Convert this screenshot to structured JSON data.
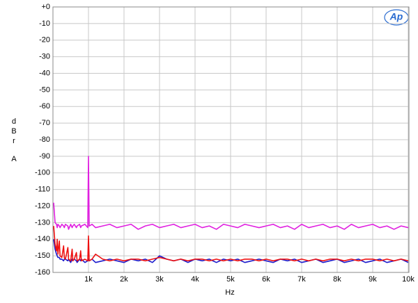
{
  "chart_data": {
    "type": "line",
    "xlabel": "Hz",
    "ylabel": [
      "d",
      "B",
      "r",
      "A"
    ],
    "logo": "Ap",
    "xlim": [
      0,
      10020
    ],
    "ylim": [
      -160,
      0
    ],
    "xticks": [
      {
        "value": 1000,
        "label": "1k"
      },
      {
        "value": 2000,
        "label": "2k"
      },
      {
        "value": 3000,
        "label": "3k"
      },
      {
        "value": 4000,
        "label": "4k"
      },
      {
        "value": 5000,
        "label": "5k"
      },
      {
        "value": 6000,
        "label": "6k"
      },
      {
        "value": 7000,
        "label": "7k"
      },
      {
        "value": 8000,
        "label": "8k"
      },
      {
        "value": 9000,
        "label": "9k"
      },
      {
        "value": 10000,
        "label": "10k"
      }
    ],
    "yticks": [
      {
        "value": 0,
        "label": "+0"
      },
      -10,
      -20,
      -30,
      -40,
      -50,
      -60,
      -70,
      -80,
      -90,
      -100,
      -110,
      -120,
      -130,
      -140,
      -150,
      -160
    ],
    "grid": true,
    "x": [
      20,
      60,
      100,
      120,
      140,
      180,
      200,
      250,
      300,
      320,
      350,
      420,
      440,
      500,
      540,
      560,
      600,
      660,
      680,
      750,
      780,
      800,
      900,
      980,
      1000,
      1020,
      1100,
      1200,
      1400,
      1600,
      1800,
      2000,
      2200,
      2400,
      2600,
      2800,
      3000,
      3200,
      3400,
      3600,
      3800,
      4000,
      4200,
      4400,
      4600,
      4800,
      5000,
      5200,
      5400,
      5600,
      5800,
      6000,
      6200,
      6400,
      6600,
      6800,
      7000,
      7200,
      7400,
      7600,
      7800,
      8000,
      8200,
      8400,
      8600,
      8800,
      9000,
      9200,
      9400,
      9600,
      9800,
      10000
    ],
    "series": [
      {
        "color": "#e020e0",
        "values": [
          -118,
          -130,
          -131,
          -133,
          -131,
          -132,
          -133,
          -131,
          -132,
          -133,
          -131,
          -132,
          -134,
          -131,
          -133,
          -132,
          -131,
          -133,
          -132,
          -131,
          -133,
          -132,
          -131,
          -133,
          -90,
          -132,
          -131,
          -133,
          -132,
          -131,
          -133,
          -132,
          -131,
          -134,
          -132,
          -131,
          -133,
          -132,
          -131,
          -133,
          -132,
          -131,
          -133,
          -132,
          -134,
          -131,
          -132,
          -133,
          -131,
          -132,
          -133,
          -132,
          -131,
          -133,
          -132,
          -134,
          -131,
          -133,
          -132,
          -131,
          -133,
          -132,
          -134,
          -131,
          -133,
          -132,
          -131,
          -133,
          -132,
          -134,
          -132,
          -133
        ]
      },
      {
        "color": "#1a1acc",
        "values": [
          -140,
          -146,
          -149,
          -150,
          -151,
          -151,
          -152,
          -152,
          -153,
          -152,
          -152,
          -153,
          -152,
          -154,
          -152,
          -153,
          -152,
          -153,
          -154,
          -152,
          -153,
          -152,
          -154,
          -153,
          -152,
          -153,
          -152,
          -154,
          -153,
          -152,
          -153,
          -154,
          -152,
          -153,
          -152,
          -154,
          -150,
          -152,
          -153,
          -152,
          -154,
          -152,
          -153,
          -152,
          -154,
          -152,
          -153,
          -152,
          -154,
          -153,
          -152,
          -153,
          -154,
          -152,
          -153,
          -152,
          -154,
          -153,
          -152,
          -154,
          -153,
          -152,
          -154,
          -153,
          -152,
          -154,
          -153,
          -152,
          -154,
          -153,
          -152,
          -154
        ]
      },
      {
        "color": "#ee1111",
        "values": [
          -132,
          -143,
          -147,
          -140,
          -149,
          -141,
          -150,
          -151,
          -144,
          -151,
          -152,
          -145,
          -152,
          -153,
          -146,
          -153,
          -152,
          -148,
          -153,
          -152,
          -147,
          -153,
          -152,
          -153,
          -138,
          -153,
          -152,
          -149,
          -152,
          -153,
          -152,
          -153,
          -152,
          -152,
          -153,
          -152,
          -151,
          -152,
          -153,
          -152,
          -153,
          -152,
          -152,
          -153,
          -152,
          -153,
          -152,
          -153,
          -152,
          -152,
          -153,
          -152,
          -153,
          -152,
          -152,
          -153,
          -152,
          -153,
          -152,
          -153,
          -152,
          -152,
          -153,
          -152,
          -153,
          -152,
          -152,
          -153,
          -152,
          -153,
          -152,
          -153
        ]
      }
    ]
  }
}
